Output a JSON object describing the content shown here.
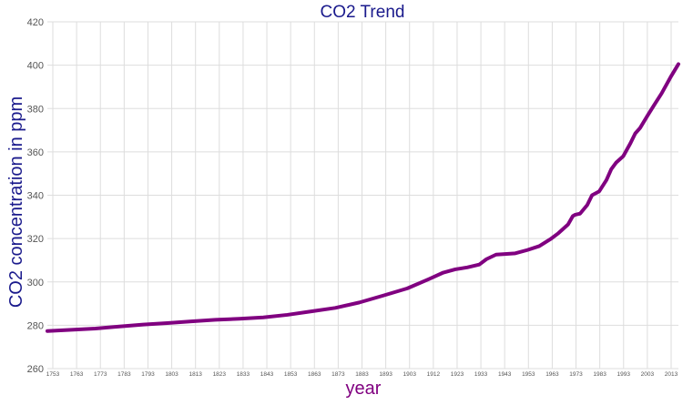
{
  "chart_data": {
    "type": "line",
    "title": "CO2 Trend",
    "xlabel": "year",
    "ylabel": "CO2 concentration in ppm",
    "xlim": [
      1753,
      2016
    ],
    "ylim": [
      260,
      420
    ],
    "y_ticks": [
      260,
      280,
      300,
      320,
      340,
      360,
      380,
      400,
      420
    ],
    "x_tick_labels": [
      "1753",
      "1763",
      "1773",
      "1783",
      "1793",
      "1803",
      "1813",
      "1823",
      "1833",
      "1843",
      "1853",
      "1863",
      "1873",
      "1883",
      "1893",
      "1903",
      "1912",
      "1923",
      "1933",
      "1943",
      "1953",
      "1963",
      "1973",
      "1983",
      "1993",
      "2003",
      "2013"
    ],
    "grid": true,
    "colors": {
      "title": "#1a1a8c",
      "ylabel": "#1a1a8c",
      "xlabel": "#800080",
      "line": "#800080",
      "grid": "#dddddd"
    },
    "series": [
      {
        "x": [
          1753,
          1763,
          1773,
          1783,
          1793,
          1803,
          1813,
          1823,
          1833,
          1843,
          1853,
          1863,
          1873,
          1883,
          1893,
          1903,
          1912,
          1918,
          1923,
          1928,
          1933,
          1936,
          1940,
          1943,
          1948,
          1953,
          1958,
          1963,
          1966,
          1970,
          1972,
          1973,
          1975,
          1978,
          1980,
          1983,
          1986,
          1988,
          1990,
          1993,
          1996,
          1998,
          2000,
          2003,
          2006,
          2009,
          2013,
          2016
        ],
        "y": [
          277.3,
          277.9,
          278.5,
          279.4,
          280.3,
          281.0,
          281.8,
          282.5,
          283.0,
          283.6,
          284.8,
          286.4,
          288.0,
          290.5,
          293.7,
          297.0,
          301.3,
          304.3,
          305.8,
          306.7,
          308.0,
          310.5,
          312.6,
          312.8,
          313.2,
          314.7,
          316.5,
          320.0,
          322.5,
          326.5,
          330.4,
          331.0,
          331.5,
          335.5,
          340.0,
          341.8,
          347.0,
          352.0,
          355.0,
          358.0,
          364.0,
          368.5,
          371.0,
          376.5,
          381.8,
          387.0,
          395.0,
          400.5
        ]
      }
    ]
  }
}
